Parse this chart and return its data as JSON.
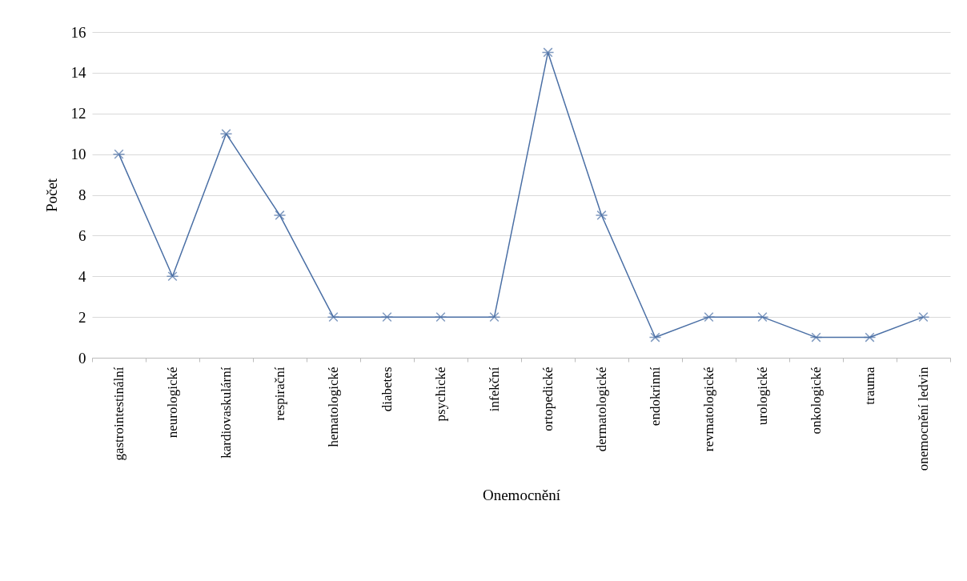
{
  "chart_data": {
    "type": "line",
    "xlabel": "Onemocnění",
    "ylabel": "Počet",
    "categories": [
      "gastrointestinální",
      "neurologické",
      "kardiovaskulární",
      "respirační",
      "hematologické",
      "diabetes",
      "psychické",
      "infekční",
      "ortopedické",
      "dermatologické",
      "endokrinní",
      "revmatologické",
      "urologické",
      "onkologické",
      "trauma",
      "onemocnění ledvin"
    ],
    "series": [
      {
        "color": "#4a6fa5",
        "values": [
          10,
          4,
          11,
          7,
          2,
          2,
          2,
          2,
          15,
          7,
          1,
          2,
          2,
          1,
          1,
          2
        ]
      }
    ],
    "ylim": [
      0,
      16
    ],
    "yticks": [
      0,
      2,
      4,
      6,
      8,
      10,
      12,
      14,
      16
    ],
    "grid": "y",
    "marker": "cross",
    "line_style": "solid",
    "legend": false
  }
}
